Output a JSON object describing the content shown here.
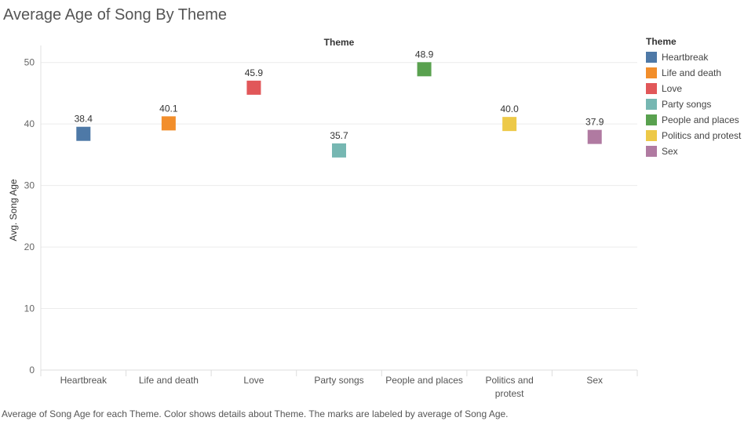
{
  "title": "Average Age of Song By Theme",
  "caption": "Average of Song Age for each Theme.  Color shows details about Theme.  The marks are labeled by average of Song Age.",
  "legend": {
    "title": "Theme",
    "items": [
      {
        "label": "Heartbreak",
        "color": "#4e79a7"
      },
      {
        "label": "Life and death",
        "color": "#f28e2b"
      },
      {
        "label": "Love",
        "color": "#e15759"
      },
      {
        "label": "Party songs",
        "color": "#76b7b2"
      },
      {
        "label": "People and places",
        "color": "#59a14f"
      },
      {
        "label": "Politics and protest",
        "color": "#edc948"
      },
      {
        "label": "Sex",
        "color": "#b07aa1"
      }
    ]
  },
  "chart_data": {
    "type": "scatter",
    "title": "Average Age of Song By Theme",
    "header": "Theme",
    "xlabel": "",
    "ylabel": "Avg. Song Age",
    "categories": [
      [
        "Heartbreak"
      ],
      [
        "Life and death"
      ],
      [
        "Love"
      ],
      [
        "Party songs"
      ],
      [
        "People and places"
      ],
      [
        "Politics and",
        "protest"
      ],
      [
        "Sex"
      ]
    ],
    "values": [
      38.4,
      40.1,
      45.9,
      35.7,
      48.9,
      40.0,
      37.9
    ],
    "value_labels": [
      "38.4",
      "40.1",
      "45.9",
      "35.7",
      "48.9",
      "40.0",
      "37.9"
    ],
    "colors": [
      "#4e79a7",
      "#f28e2b",
      "#e15759",
      "#76b7b2",
      "#59a14f",
      "#edc948",
      "#b07aa1"
    ],
    "ylim": [
      0,
      52
    ],
    "yticks": [
      0,
      10,
      20,
      30,
      40,
      50
    ],
    "grid": true,
    "legend_position": "right"
  }
}
